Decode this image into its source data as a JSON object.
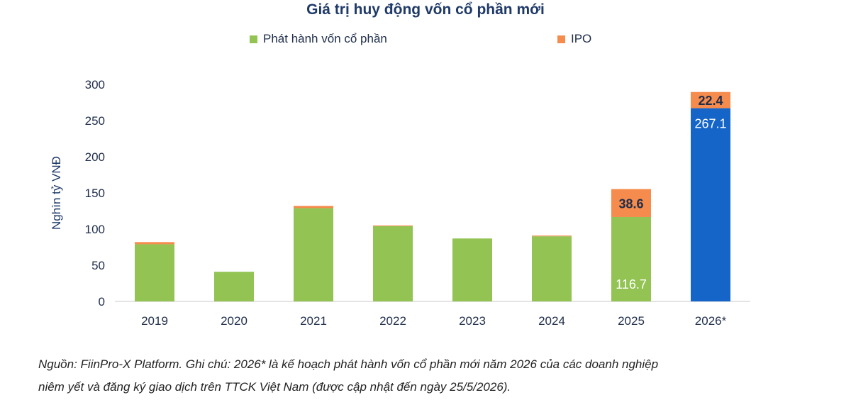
{
  "chart_data": {
    "type": "bar",
    "stacked": true,
    "title": "Giá trị huy động vốn cổ phần mới",
    "ylabel": "Nghìn tỷ VNĐ",
    "xlabel": "",
    "ylim": [
      0,
      300
    ],
    "yticks": [
      0,
      50,
      100,
      150,
      200,
      250,
      300
    ],
    "grid": false,
    "legend_position": "top",
    "categories": [
      "2019",
      "2020",
      "2021",
      "2022",
      "2023",
      "2024",
      "2025",
      "2026*"
    ],
    "series": [
      {
        "name": "Phát hành vốn cổ phần",
        "color": "#92c353",
        "values": [
          79,
          41,
          129,
          104,
          87,
          90,
          116.7,
          267.1
        ],
        "labels": [
          "",
          "",
          "",
          "",
          "",
          "",
          "116.7",
          "267.1"
        ]
      },
      {
        "name": "IPO",
        "color": "#f58b4c",
        "values": [
          3,
          0,
          3,
          1,
          0,
          1,
          38.6,
          22.4
        ],
        "labels": [
          "",
          "",
          "",
          "",
          "",
          "",
          "38.6",
          "22.4"
        ]
      }
    ],
    "highlight": {
      "category": "2026*",
      "series": "Phát hành vốn cổ phần",
      "color": "#1565c8"
    }
  },
  "footnote": {
    "line1": "Nguồn: FiinPro-X Platform. Ghi chú: 2026* là kế hoạch phát hành vốn cổ phần mới năm 2026 của các doanh nghiệp",
    "line2": "niêm yết và đăng ký giao dịch trên TTCK Việt Nam (được cập nhật đến ngày 25/5/2026)."
  }
}
